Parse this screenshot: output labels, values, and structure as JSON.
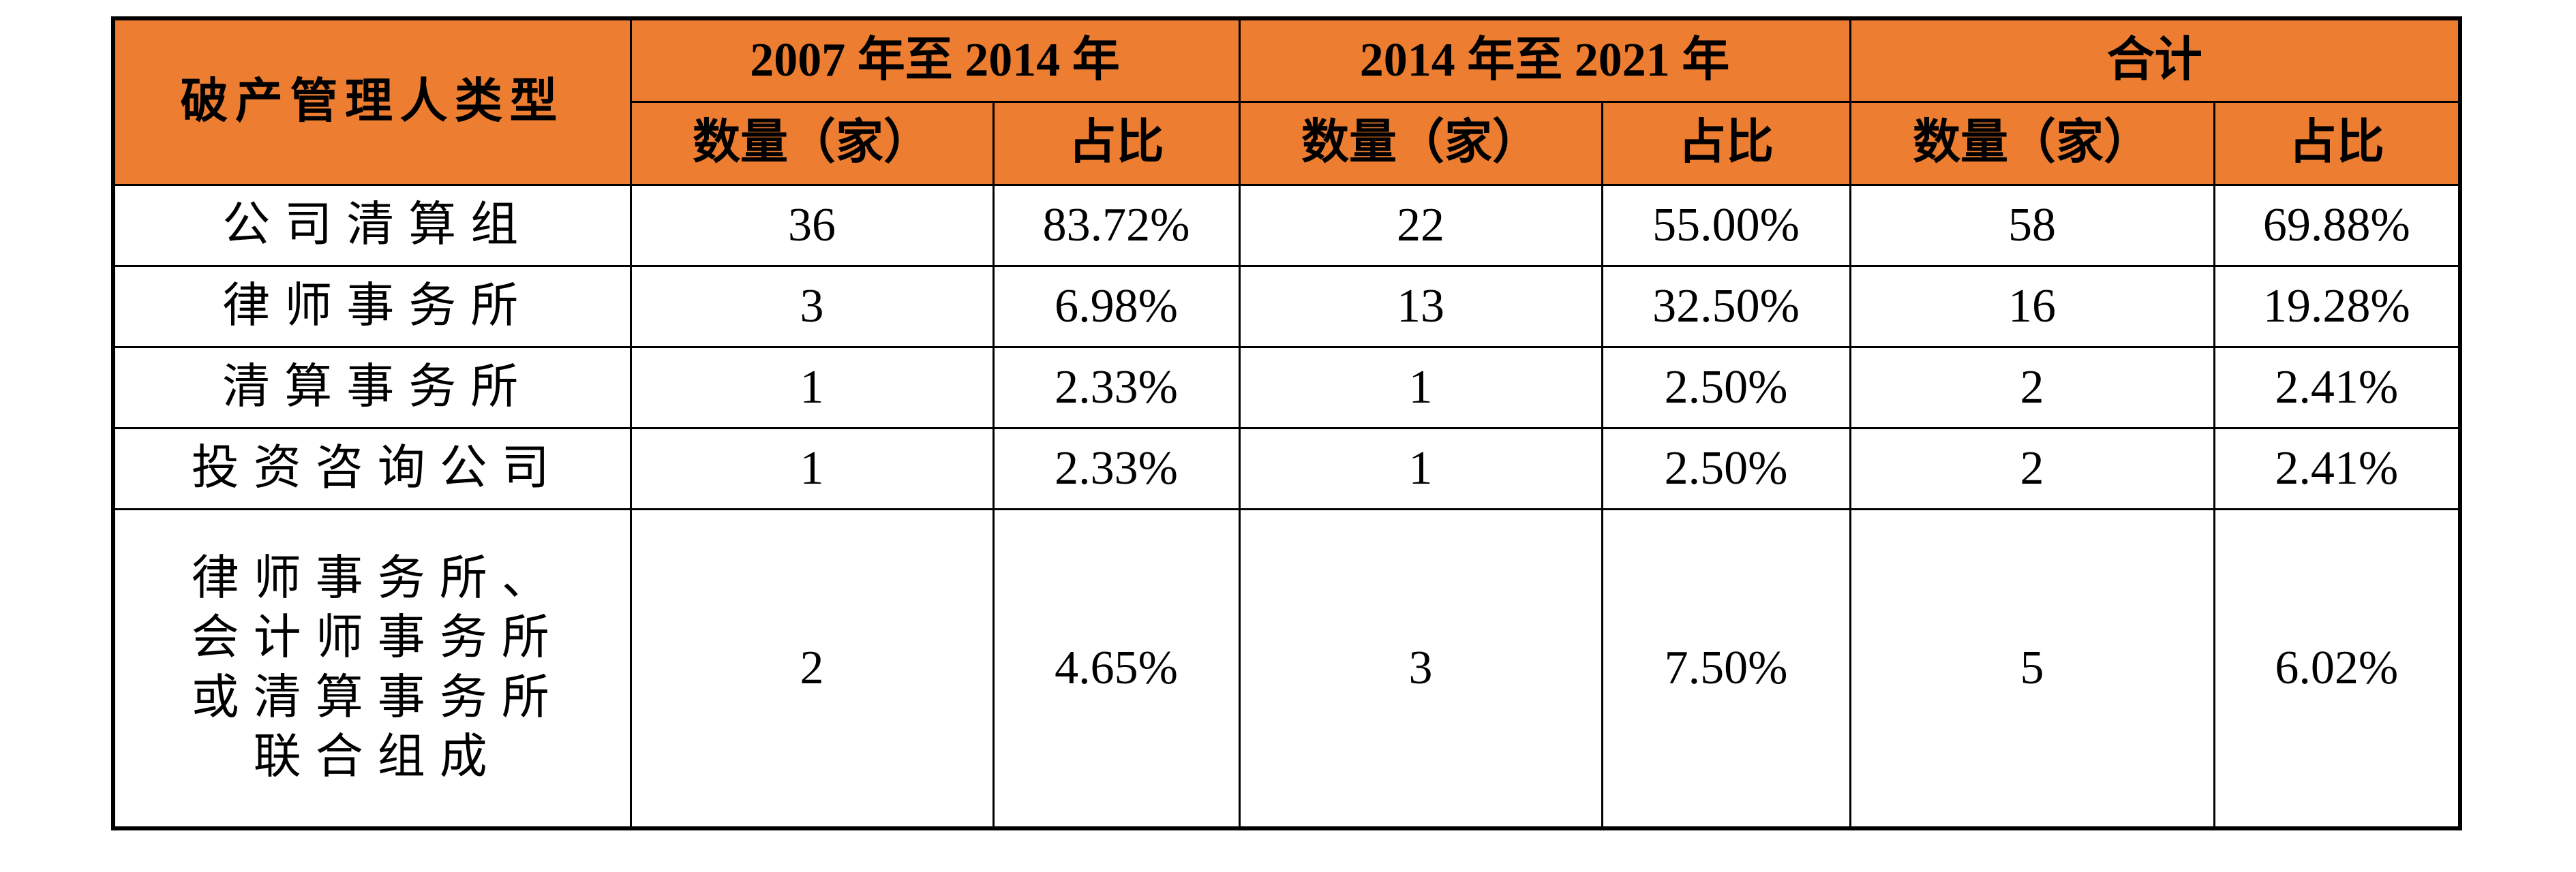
{
  "table": {
    "header": {
      "type_label": "破产管理人类型",
      "groups": [
        "2007 年至 2014 年",
        "2014 年至 2021 年",
        "合计"
      ],
      "subheaders": [
        "数量（家）",
        "占比",
        "数量（家）",
        "占比",
        "数量（家）",
        "占比"
      ]
    },
    "rows": [
      [
        "公司清算组",
        "36",
        "83.72%",
        "22",
        "55.00%",
        "58",
        "69.88%"
      ],
      [
        "律师事务所",
        "3",
        "6.98%",
        "13",
        "32.50%",
        "16",
        "19.28%"
      ],
      [
        "清算事务所",
        "1",
        "2.33%",
        "1",
        "2.50%",
        "2",
        "2.41%"
      ],
      [
        "投资咨询公司",
        "1",
        "2.33%",
        "1",
        "2.50%",
        "2",
        "2.41%"
      ],
      [
        "律师事务所、会计师事务所或清算事务所联合组成",
        "2",
        "4.65%",
        "3",
        "7.50%",
        "5",
        "6.02%"
      ]
    ]
  }
}
